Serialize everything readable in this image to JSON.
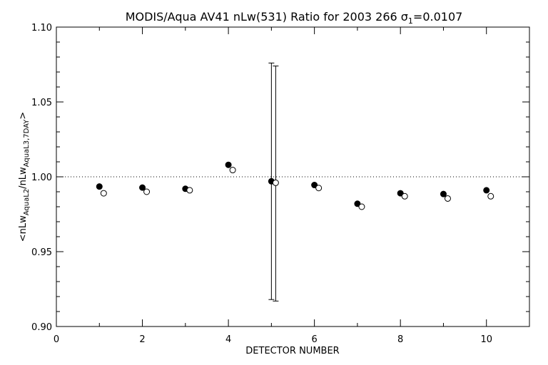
{
  "chart_data": {
    "type": "scatter",
    "title": {
      "main": "MODIS/Aqua AV41 nLw(531) Ratio for 2003 266 ",
      "sigma_symbol": "σ",
      "sigma_sub": "1",
      "sigma_value": "=0.0107"
    },
    "xlabel": "DETECTOR NUMBER",
    "ylabel": {
      "open": "<nLw",
      "sub1": "AquaL2",
      "mid": "/nLw",
      "sub2": "AquaL3,7DAY",
      "close": ">"
    },
    "xlim": [
      0,
      11
    ],
    "ylim": [
      0.9,
      1.1
    ],
    "x_ticks": [
      0,
      2,
      4,
      6,
      8,
      10
    ],
    "x_tick_labels": [
      "0",
      "2",
      "4",
      "6",
      "8",
      "10"
    ],
    "y_ticks": [
      0.9,
      0.95,
      1.0,
      1.05,
      1.1
    ],
    "y_tick_labels": [
      "0.90",
      "0.95",
      "1.00",
      "1.05",
      "1.10"
    ],
    "reference_line": {
      "y": 1.0,
      "style": "dotted"
    },
    "series": [
      {
        "marker": "filled-circle",
        "x": [
          1,
          2,
          3,
          4,
          5,
          6,
          7,
          8,
          9,
          10
        ],
        "y": [
          0.9935,
          0.9928,
          0.992,
          1.008,
          0.997,
          0.9945,
          0.982,
          0.989,
          0.9885,
          0.991
        ]
      },
      {
        "marker": "open-circle",
        "x": [
          1.1,
          2.1,
          3.1,
          4.1,
          5.1,
          6.1,
          7.1,
          8.1,
          9.1,
          10.1
        ],
        "y": [
          0.989,
          0.99,
          0.991,
          1.0045,
          0.996,
          0.9925,
          0.98,
          0.987,
          0.9855,
          0.987
        ]
      }
    ],
    "error_bars": [
      {
        "x": 5,
        "low": 0.918,
        "high": 1.076
      },
      {
        "x": 5.1,
        "low": 0.917,
        "high": 1.074
      }
    ],
    "grid": false,
    "legend": "none"
  }
}
